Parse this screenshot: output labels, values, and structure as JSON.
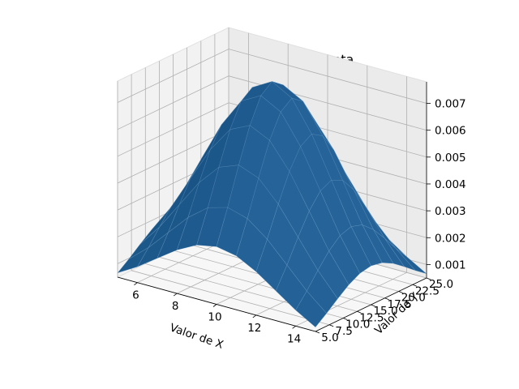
{
  "chart_data": {
    "type": "surface",
    "title": "Función Densidad conjunta",
    "xlabel": "Valor de X",
    "ylabel": "Valor de Y",
    "zlabel": "",
    "xlim": [
      5,
      15
    ],
    "ylim": [
      5,
      25
    ],
    "zlim": [
      0.0005,
      0.0078
    ],
    "x_ticks": [
      "6",
      "8",
      "10",
      "12",
      "14"
    ],
    "x_tick_values": [
      6,
      8,
      10,
      12,
      14
    ],
    "y_ticks": [
      "5.0",
      "7.5",
      "10.0",
      "12.5",
      "15.0",
      "17.5",
      "20.0",
      "22.5",
      "25.0"
    ],
    "y_tick_values": [
      5,
      7.5,
      10,
      12.5,
      15,
      17.5,
      20,
      22.5,
      25
    ],
    "z_ticks": [
      "0.001",
      "0.002",
      "0.003",
      "0.004",
      "0.005",
      "0.006",
      "0.007"
    ],
    "z_tick_values": [
      0.001,
      0.002,
      0.003,
      0.004,
      0.005,
      0.006,
      0.007
    ],
    "surface": {
      "function": "bivariate normal density",
      "x_mean": 10,
      "x_std": 3,
      "y_mean": 15,
      "y_std": 6.8,
      "peak_value": 0.0078,
      "x_range": [
        5,
        15
      ],
      "y_range": [
        5,
        25
      ],
      "grid_points": 11
    },
    "grid": true,
    "color": "#1f5b8f"
  }
}
